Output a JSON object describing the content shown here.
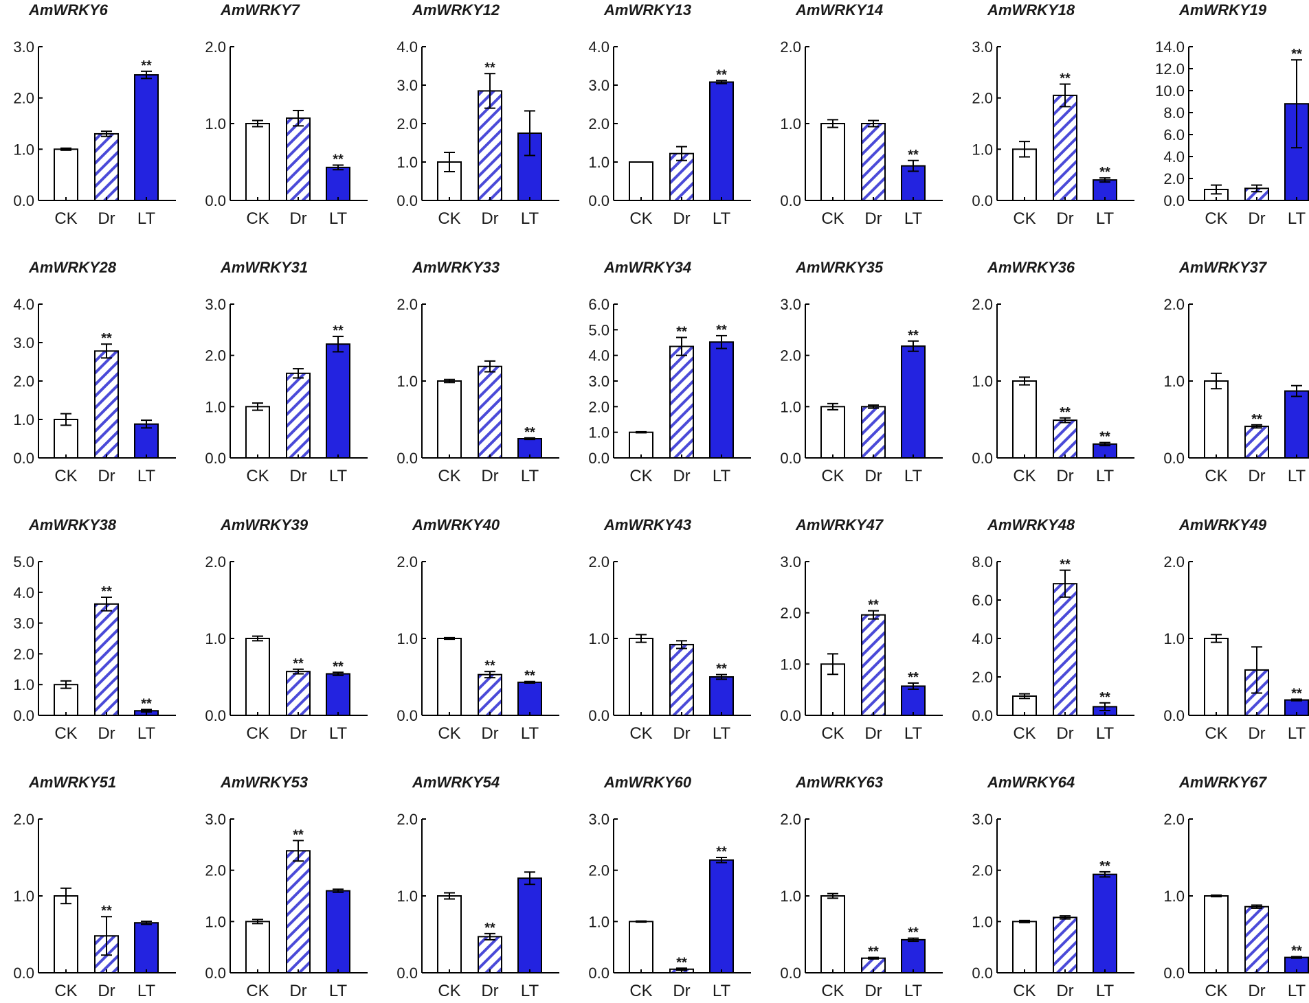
{
  "page": {
    "background": "#ffffff"
  },
  "colors": {
    "ck": "#ffffff",
    "dr_base": "#4a4ad8",
    "dr_stripe": "#ffffff",
    "lt": "#2323e0",
    "axis": "#000000"
  },
  "chart_data": [
    {
      "type": "bar",
      "title": "AmWRKY6",
      "categories": [
        "CK",
        "Dr",
        "LT"
      ],
      "values": [
        1.0,
        1.3,
        2.45
      ],
      "errors": [
        0.02,
        0.05,
        0.07
      ],
      "significance": [
        "",
        "",
        "**"
      ],
      "ylim": [
        0,
        3
      ],
      "yticks": [
        "0.0",
        "1.0",
        "2.0",
        "3.0"
      ]
    },
    {
      "type": "bar",
      "title": "AmWRKY7",
      "categories": [
        "CK",
        "Dr",
        "LT"
      ],
      "values": [
        1.0,
        1.07,
        0.43
      ],
      "errors": [
        0.04,
        0.1,
        0.03
      ],
      "significance": [
        "",
        "",
        "**"
      ],
      "ylim": [
        0,
        2
      ],
      "yticks": [
        "0.0",
        "1.0",
        "2.0"
      ]
    },
    {
      "type": "bar",
      "title": "AmWRKY12",
      "categories": [
        "CK",
        "Dr",
        "LT"
      ],
      "values": [
        1.0,
        2.85,
        1.75
      ],
      "errors": [
        0.25,
        0.45,
        0.58
      ],
      "significance": [
        "",
        "**",
        ""
      ],
      "ylim": [
        0,
        4
      ],
      "yticks": [
        "0.0",
        "1.0",
        "2.0",
        "3.0",
        "4.0"
      ]
    },
    {
      "type": "bar",
      "title": "AmWRKY13",
      "categories": [
        "CK",
        "Dr",
        "LT"
      ],
      "values": [
        1.0,
        1.22,
        3.08
      ],
      "errors": [
        0.0,
        0.18,
        0.04
      ],
      "significance": [
        "",
        "",
        "**"
      ],
      "ylim": [
        0,
        4
      ],
      "yticks": [
        "0.0",
        "1.0",
        "2.0",
        "3.0",
        "4.0"
      ]
    },
    {
      "type": "bar",
      "title": "AmWRKY14",
      "categories": [
        "CK",
        "Dr",
        "LT"
      ],
      "values": [
        1.0,
        1.0,
        0.45
      ],
      "errors": [
        0.05,
        0.04,
        0.07
      ],
      "significance": [
        "",
        "",
        "**"
      ],
      "ylim": [
        0,
        2
      ],
      "yticks": [
        "0.0",
        "1.0",
        "2.0"
      ]
    },
    {
      "type": "bar",
      "title": "AmWRKY18",
      "categories": [
        "CK",
        "Dr",
        "LT"
      ],
      "values": [
        1.0,
        2.05,
        0.4
      ],
      "errors": [
        0.15,
        0.22,
        0.04
      ],
      "significance": [
        "",
        "**",
        "**"
      ],
      "ylim": [
        0,
        3
      ],
      "yticks": [
        "0.0",
        "1.0",
        "2.0",
        "3.0"
      ]
    },
    {
      "type": "bar",
      "title": "AmWRKY19",
      "categories": [
        "CK",
        "Dr",
        "LT"
      ],
      "values": [
        1.0,
        1.1,
        8.8
      ],
      "errors": [
        0.4,
        0.3,
        4.0
      ],
      "significance": [
        "",
        "",
        "**"
      ],
      "ylim": [
        0,
        14
      ],
      "yticks": [
        "0.0",
        "2.0",
        "4.0",
        "6.0",
        "8.0",
        "10.0",
        "12.0",
        "14.0"
      ]
    },
    {
      "type": "bar",
      "title": "AmWRKY28",
      "categories": [
        "CK",
        "Dr",
        "LT"
      ],
      "values": [
        1.0,
        2.78,
        0.88
      ],
      "errors": [
        0.15,
        0.18,
        0.1
      ],
      "significance": [
        "",
        "**",
        ""
      ],
      "ylim": [
        0,
        4
      ],
      "yticks": [
        "0.0",
        "1.0",
        "2.0",
        "3.0",
        "4.0"
      ]
    },
    {
      "type": "bar",
      "title": "AmWRKY31",
      "categories": [
        "CK",
        "Dr",
        "LT"
      ],
      "values": [
        1.0,
        1.65,
        2.22
      ],
      "errors": [
        0.07,
        0.09,
        0.15
      ],
      "significance": [
        "",
        "",
        "**"
      ],
      "ylim": [
        0,
        3
      ],
      "yticks": [
        "0.0",
        "1.0",
        "2.0",
        "3.0"
      ]
    },
    {
      "type": "bar",
      "title": "AmWRKY33",
      "categories": [
        "CK",
        "Dr",
        "LT"
      ],
      "values": [
        1.0,
        1.19,
        0.25
      ],
      "errors": [
        0.02,
        0.07,
        0.01
      ],
      "significance": [
        "",
        "",
        "**"
      ],
      "ylim": [
        0,
        2
      ],
      "yticks": [
        "0.0",
        "1.0",
        "2.0"
      ]
    },
    {
      "type": "bar",
      "title": "AmWRKY34",
      "categories": [
        "CK",
        "Dr",
        "LT"
      ],
      "values": [
        1.0,
        4.35,
        4.52
      ],
      "errors": [
        0.02,
        0.35,
        0.25
      ],
      "significance": [
        "",
        "**",
        "**"
      ],
      "ylim": [
        0,
        6
      ],
      "yticks": [
        "0.0",
        "1.0",
        "2.0",
        "3.0",
        "4.0",
        "5.0",
        "6.0"
      ]
    },
    {
      "type": "bar",
      "title": "AmWRKY35",
      "categories": [
        "CK",
        "Dr",
        "LT"
      ],
      "values": [
        1.0,
        1.0,
        2.18
      ],
      "errors": [
        0.06,
        0.03,
        0.1
      ],
      "significance": [
        "",
        "",
        "**"
      ],
      "ylim": [
        0,
        3
      ],
      "yticks": [
        "0.0",
        "1.0",
        "2.0",
        "3.0"
      ]
    },
    {
      "type": "bar",
      "title": "AmWRKY36",
      "categories": [
        "CK",
        "Dr",
        "LT"
      ],
      "values": [
        1.0,
        0.49,
        0.18
      ],
      "errors": [
        0.05,
        0.03,
        0.02
      ],
      "significance": [
        "",
        "**",
        "**"
      ],
      "ylim": [
        0,
        2
      ],
      "yticks": [
        "0.0",
        "1.0",
        "2.0"
      ]
    },
    {
      "type": "bar",
      "title": "AmWRKY37",
      "categories": [
        "CK",
        "Dr",
        "LT"
      ],
      "values": [
        1.0,
        0.41,
        0.87
      ],
      "errors": [
        0.1,
        0.02,
        0.07
      ],
      "significance": [
        "",
        "**",
        ""
      ],
      "ylim": [
        0,
        2
      ],
      "yticks": [
        "0.0",
        "1.0",
        "2.0"
      ]
    },
    {
      "type": "bar",
      "title": "AmWRKY38",
      "categories": [
        "CK",
        "Dr",
        "LT"
      ],
      "values": [
        1.0,
        3.62,
        0.15
      ],
      "errors": [
        0.12,
        0.22,
        0.04
      ],
      "significance": [
        "",
        "**",
        "**"
      ],
      "ylim": [
        0,
        5
      ],
      "yticks": [
        "0.0",
        "1.0",
        "2.0",
        "3.0",
        "4.0",
        "5.0"
      ]
    },
    {
      "type": "bar",
      "title": "AmWRKY39",
      "categories": [
        "CK",
        "Dr",
        "LT"
      ],
      "values": [
        1.0,
        0.57,
        0.54
      ],
      "errors": [
        0.03,
        0.03,
        0.02
      ],
      "significance": [
        "",
        "**",
        "**"
      ],
      "ylim": [
        0,
        2
      ],
      "yticks": [
        "0.0",
        "1.0",
        "2.0"
      ]
    },
    {
      "type": "bar",
      "title": "AmWRKY40",
      "categories": [
        "CK",
        "Dr",
        "LT"
      ],
      "values": [
        1.0,
        0.53,
        0.43
      ],
      "errors": [
        0.01,
        0.04,
        0.01
      ],
      "significance": [
        "",
        "**",
        "**"
      ],
      "ylim": [
        0,
        2
      ],
      "yticks": [
        "0.0",
        "1.0",
        "2.0"
      ]
    },
    {
      "type": "bar",
      "title": "AmWRKY43",
      "categories": [
        "CK",
        "Dr",
        "LT"
      ],
      "values": [
        1.0,
        0.92,
        0.5
      ],
      "errors": [
        0.05,
        0.05,
        0.03
      ],
      "significance": [
        "",
        "",
        "**"
      ],
      "ylim": [
        0,
        2
      ],
      "yticks": [
        "0.0",
        "1.0",
        "2.0"
      ]
    },
    {
      "type": "bar",
      "title": "AmWRKY47",
      "categories": [
        "CK",
        "Dr",
        "LT"
      ],
      "values": [
        1.0,
        1.96,
        0.57
      ],
      "errors": [
        0.2,
        0.08,
        0.06
      ],
      "significance": [
        "",
        "**",
        "**"
      ],
      "ylim": [
        0,
        3
      ],
      "yticks": [
        "0.0",
        "1.0",
        "2.0",
        "3.0"
      ]
    },
    {
      "type": "bar",
      "title": "AmWRKY48",
      "categories": [
        "CK",
        "Dr",
        "LT"
      ],
      "values": [
        1.0,
        6.85,
        0.45
      ],
      "errors": [
        0.12,
        0.7,
        0.2
      ],
      "significance": [
        "",
        "**",
        "**"
      ],
      "ylim": [
        0,
        8
      ],
      "yticks": [
        "0.0",
        "2.0",
        "4.0",
        "6.0",
        "8.0"
      ]
    },
    {
      "type": "bar",
      "title": "AmWRKY49",
      "categories": [
        "CK",
        "Dr",
        "LT"
      ],
      "values": [
        1.0,
        0.59,
        0.2
      ],
      "errors": [
        0.05,
        0.3,
        0.01
      ],
      "significance": [
        "",
        "",
        "**"
      ],
      "ylim": [
        0,
        2
      ],
      "yticks": [
        "0.0",
        "1.0",
        "2.0"
      ]
    },
    {
      "type": "bar",
      "title": "AmWRKY51",
      "categories": [
        "CK",
        "Dr",
        "LT"
      ],
      "values": [
        1.0,
        0.48,
        0.65
      ],
      "errors": [
        0.1,
        0.25,
        0.02
      ],
      "significance": [
        "",
        "**",
        ""
      ],
      "ylim": [
        0,
        2
      ],
      "yticks": [
        "0.0",
        "1.0",
        "2.0"
      ]
    },
    {
      "type": "bar",
      "title": "AmWRKY53",
      "categories": [
        "CK",
        "Dr",
        "LT"
      ],
      "values": [
        1.0,
        2.38,
        1.6
      ],
      "errors": [
        0.04,
        0.2,
        0.03
      ],
      "significance": [
        "",
        "**",
        ""
      ],
      "ylim": [
        0,
        3
      ],
      "yticks": [
        "0.0",
        "1.0",
        "2.0",
        "3.0"
      ]
    },
    {
      "type": "bar",
      "title": "AmWRKY54",
      "categories": [
        "CK",
        "Dr",
        "LT"
      ],
      "values": [
        1.0,
        0.47,
        1.23
      ],
      "errors": [
        0.04,
        0.04,
        0.08
      ],
      "significance": [
        "",
        "**",
        ""
      ],
      "ylim": [
        0,
        2
      ],
      "yticks": [
        "0.0",
        "1.0",
        "2.0"
      ]
    },
    {
      "type": "bar",
      "title": "AmWRKY60",
      "categories": [
        "CK",
        "Dr",
        "LT"
      ],
      "values": [
        1.0,
        0.07,
        2.2
      ],
      "errors": [
        0.01,
        0.02,
        0.05
      ],
      "significance": [
        "",
        "**",
        "**"
      ],
      "ylim": [
        0,
        3
      ],
      "yticks": [
        "0.0",
        "1.0",
        "2.0",
        "3.0"
      ]
    },
    {
      "type": "bar",
      "title": "AmWRKY63",
      "categories": [
        "CK",
        "Dr",
        "LT"
      ],
      "values": [
        1.0,
        0.19,
        0.43
      ],
      "errors": [
        0.03,
        0.01,
        0.02
      ],
      "significance": [
        "",
        "**",
        "**"
      ],
      "ylim": [
        0,
        2
      ],
      "yticks": [
        "0.0",
        "1.0",
        "2.0"
      ]
    },
    {
      "type": "bar",
      "title": "AmWRKY64",
      "categories": [
        "CK",
        "Dr",
        "LT"
      ],
      "values": [
        1.0,
        1.08,
        1.92
      ],
      "errors": [
        0.02,
        0.03,
        0.05
      ],
      "significance": [
        "",
        "",
        "**"
      ],
      "ylim": [
        0,
        3
      ],
      "yticks": [
        "0.0",
        "1.0",
        "2.0",
        "3.0"
      ]
    },
    {
      "type": "bar",
      "title": "AmWRKY67",
      "categories": [
        "CK",
        "Dr",
        "LT"
      ],
      "values": [
        1.0,
        0.86,
        0.2
      ],
      "errors": [
        0.01,
        0.02,
        0.01
      ],
      "significance": [
        "",
        "",
        "**"
      ],
      "ylim": [
        0,
        2
      ],
      "yticks": [
        "0.0",
        "1.0",
        "2.0"
      ]
    }
  ]
}
